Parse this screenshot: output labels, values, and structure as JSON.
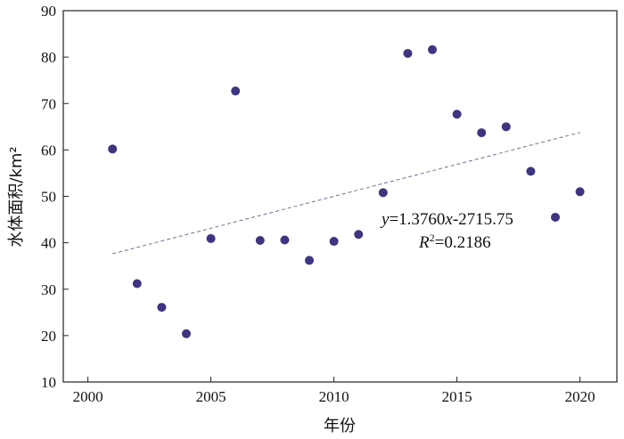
{
  "chart_data": {
    "type": "scatter",
    "xlabel": "年份",
    "ylabel": "水体面积/km²",
    "xlim": [
      1999,
      2021.5
    ],
    "ylim": [
      10,
      90
    ],
    "xticks": [
      2000,
      2005,
      2010,
      2015,
      2020
    ],
    "yticks": [
      10,
      20,
      30,
      40,
      50,
      60,
      70,
      80,
      90
    ],
    "grid": false,
    "point_color": "#3d3580",
    "trend_color": "#6f6f9a",
    "series": [
      {
        "x": [
          2001,
          2002,
          2003,
          2004,
          2005,
          2006,
          2007,
          2008,
          2009,
          2010,
          2011,
          2012,
          2013,
          2014,
          2015,
          2016,
          2017,
          2018,
          2019,
          2020
        ],
        "y": [
          60.2,
          31.2,
          26.1,
          20.4,
          40.9,
          72.7,
          40.5,
          40.6,
          36.2,
          40.3,
          41.8,
          50.8,
          80.8,
          81.6,
          67.7,
          63.7,
          65.0,
          55.4,
          45.5,
          51.0
        ]
      }
    ],
    "trendline": {
      "x_range": [
        2001,
        2020
      ],
      "slope": 1.376,
      "intercept": -2715.75
    },
    "annotations": {
      "equation": {
        "y_var": "y",
        "eq_part1": "=1.3760",
        "x_var": "x",
        "eq_part2": "-2715.75"
      },
      "r2": {
        "r_var": "R",
        "sup": "2",
        "value_part": "=0.2186"
      }
    }
  }
}
